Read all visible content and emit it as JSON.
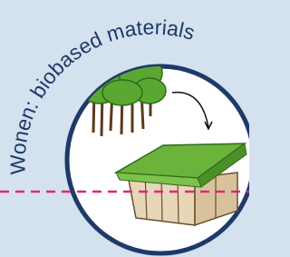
{
  "title": "Wonen: biobased materials"
}
